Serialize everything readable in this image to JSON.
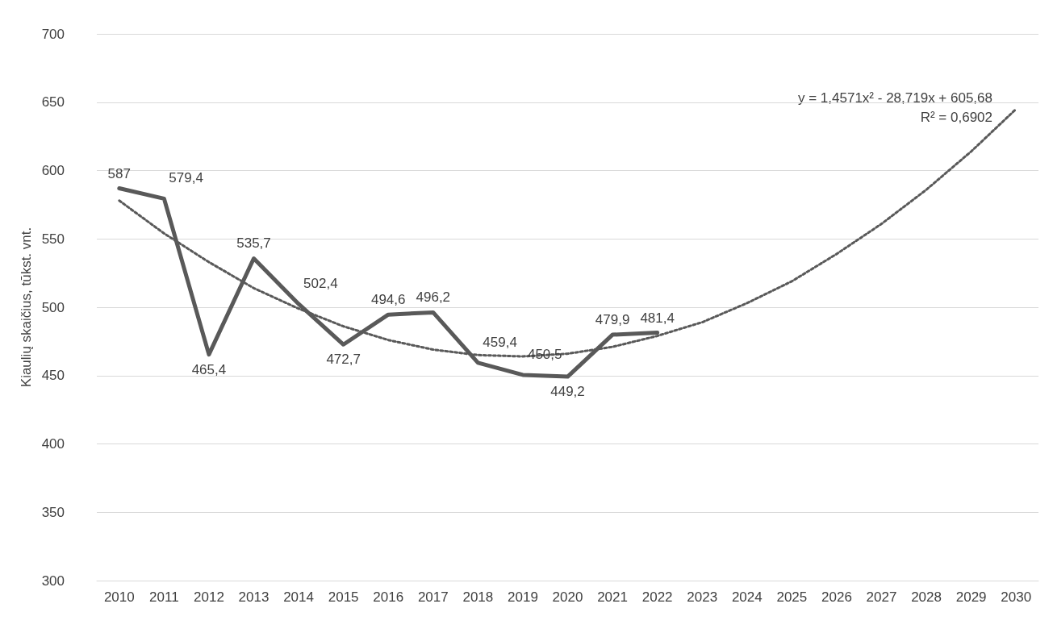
{
  "chart_data": {
    "type": "line",
    "ylabel": "Kiaulių skaičius, tūkst. vnt.",
    "categories": [
      "2010",
      "2011",
      "2012",
      "2013",
      "2014",
      "2015",
      "2016",
      "2017",
      "2018",
      "2019",
      "2020",
      "2021",
      "2022",
      "2023",
      "2024",
      "2025",
      "2026",
      "2027",
      "2028",
      "2029",
      "2030"
    ],
    "series": [
      {
        "color": "#595959",
        "line_style": "solid",
        "values": [
          587,
          579.4,
          465.4,
          535.7,
          502.4,
          472.7,
          494.6,
          496.2,
          459.4,
          450.5,
          449.2,
          479.9,
          481.4,
          null,
          null,
          null,
          null,
          null,
          null,
          null,
          null
        ],
        "value_labels": [
          "587",
          "579,4",
          "465,4",
          "535,7",
          "502,4",
          "472,7",
          "494,6",
          "496,2",
          "459,4",
          "450,5",
          "449,2",
          "479,9",
          "481,4",
          null,
          null,
          null,
          null,
          null,
          null,
          null,
          null
        ]
      },
      {
        "color": "#595959",
        "line_style": "dotted",
        "values": [
          578,
          554,
          533,
          514,
          499,
          486,
          476,
          469,
          465,
          464,
          466,
          471,
          479,
          489,
          503,
          519,
          539,
          561,
          586,
          614,
          645
        ]
      }
    ],
    "ylim": [
      300,
      700
    ],
    "yticks": [
      300,
      350,
      400,
      450,
      500,
      550,
      600,
      650,
      700
    ],
    "grid": "y",
    "annotations": [
      "y = 1,4571x² - 28,719x + 605,68",
      "R² = 0,6902"
    ]
  }
}
